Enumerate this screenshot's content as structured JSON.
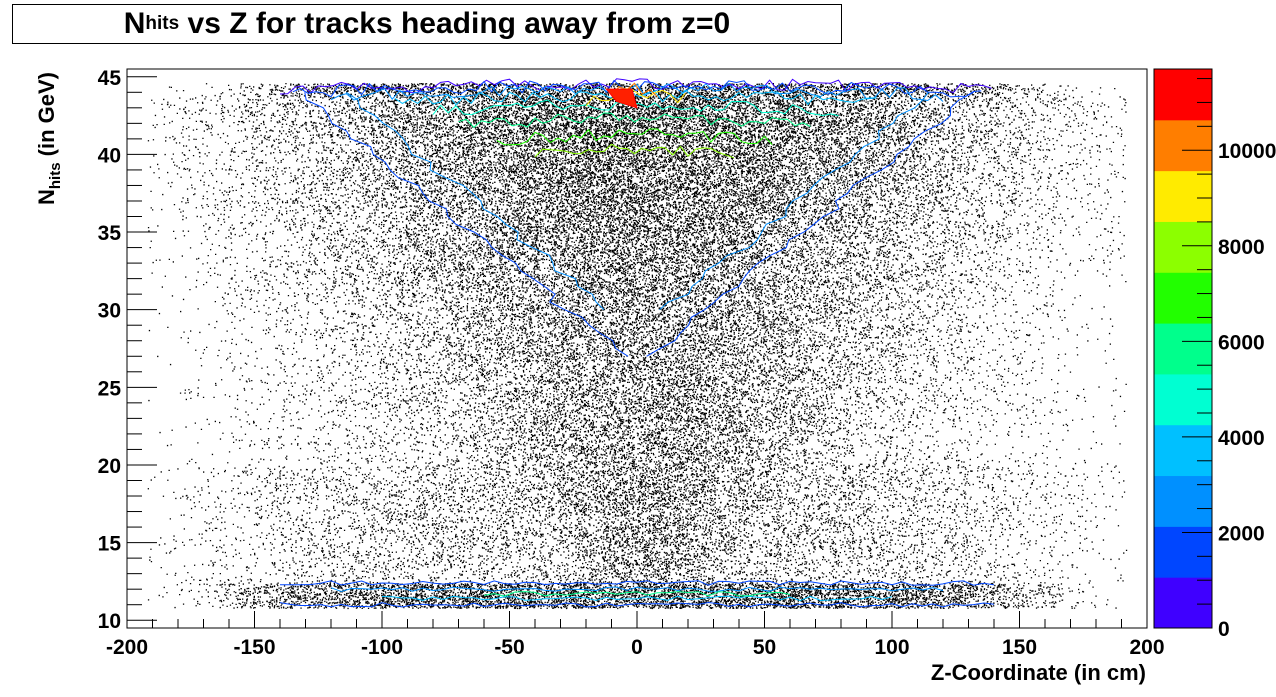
{
  "chart_data": {
    "type": "heatmap",
    "title_main": "N",
    "title_sub": "hits",
    "title_rest": " vs Z for tracks heading away from z=0",
    "xlabel": "Z-Coordinate (in cm)",
    "ylabel_main": "N",
    "ylabel_sub": "hits",
    "ylabel_rest": " (in GeV)",
    "xlim": [
      -200,
      200
    ],
    "ylim": [
      9.5,
      45.5
    ],
    "x_ticks": [
      {
        "value": -200,
        "label": "-200"
      },
      {
        "value": -150,
        "label": "-150"
      },
      {
        "value": -100,
        "label": "-100"
      },
      {
        "value": -50,
        "label": "-50"
      },
      {
        "value": 0,
        "label": "0"
      },
      {
        "value": 50,
        "label": "50"
      },
      {
        "value": 100,
        "label": "100"
      },
      {
        "value": 150,
        "label": "150"
      },
      {
        "value": 200,
        "label": "200"
      }
    ],
    "y_ticks": [
      {
        "value": 10,
        "label": "10"
      },
      {
        "value": 15,
        "label": "15"
      },
      {
        "value": 20,
        "label": "20"
      },
      {
        "value": 25,
        "label": "25"
      },
      {
        "value": 30,
        "label": "30"
      },
      {
        "value": 35,
        "label": "35"
      },
      {
        "value": 40,
        "label": "40"
      },
      {
        "value": 45,
        "label": "45"
      }
    ],
    "colorbar": {
      "range": [
        0,
        11700
      ],
      "levels": 11,
      "colors": [
        "#3f00ff",
        "#0046ff",
        "#0090ff",
        "#00c0ff",
        "#00ffd2",
        "#00ff8c",
        "#22ff00",
        "#8cff00",
        "#ffeb00",
        "#ff7e00",
        "#ff0000"
      ],
      "ticks": [
        {
          "value": 0,
          "label": "0"
        },
        {
          "value": 2000,
          "label": "2000"
        },
        {
          "value": 4000,
          "label": "4000"
        },
        {
          "value": 6000,
          "label": "6000"
        },
        {
          "value": 8000,
          "label": "8000"
        },
        {
          "value": 10000,
          "label": "10000"
        }
      ]
    },
    "grid": false,
    "legend": "right colorbar"
  }
}
